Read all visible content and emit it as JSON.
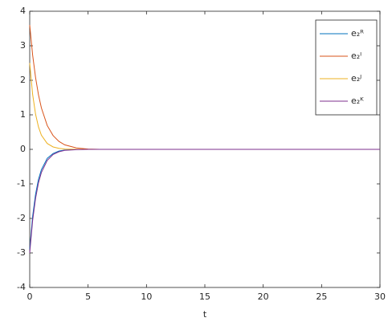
{
  "chart_data": {
    "type": "line",
    "x_label": "t",
    "x": [
      0,
      0.25,
      0.5,
      0.75,
      1,
      1.5,
      2,
      2.5,
      3,
      4,
      5,
      6,
      8,
      10,
      15,
      20,
      25,
      30
    ],
    "series": [
      {
        "name": "e₂ᴿ",
        "color": "#0072bd",
        "values": [
          -2.9,
          -1.94,
          -1.3,
          -0.87,
          -0.59,
          -0.26,
          -0.12,
          -0.05,
          -0.02,
          0,
          0,
          0,
          0,
          0,
          0,
          0,
          0,
          0
        ]
      },
      {
        "name": "e₂ᴵ",
        "color": "#d95319",
        "values": [
          3.6,
          2.73,
          2.08,
          1.58,
          1.2,
          0.69,
          0.4,
          0.23,
          0.13,
          0.04,
          0.01,
          0,
          0,
          0,
          0,
          0,
          0,
          0
        ]
      },
      {
        "name": "e₂ᴶ",
        "color": "#edb120",
        "values": [
          2.5,
          1.59,
          1.02,
          0.65,
          0.41,
          0.17,
          0.07,
          0.03,
          0.01,
          0,
          0,
          0,
          0,
          0,
          0,
          0,
          0,
          0
        ]
      },
      {
        "name": "e₂ᴷ",
        "color": "#7e2f8e",
        "values": [
          -3,
          -2.06,
          -1.42,
          -0.97,
          -0.67,
          -0.32,
          -0.15,
          -0.07,
          -0.03,
          -0.01,
          0,
          0,
          0,
          0,
          0,
          0,
          0,
          0
        ]
      }
    ],
    "xlim": [
      0,
      30
    ],
    "xticks": [
      0,
      5,
      10,
      15,
      20,
      25,
      30
    ],
    "ylim": [
      -4,
      4
    ],
    "yticks": [
      -4,
      -3,
      -2,
      -1,
      0,
      1,
      2,
      3,
      4
    ],
    "grid": false,
    "legend": "northeast"
  }
}
